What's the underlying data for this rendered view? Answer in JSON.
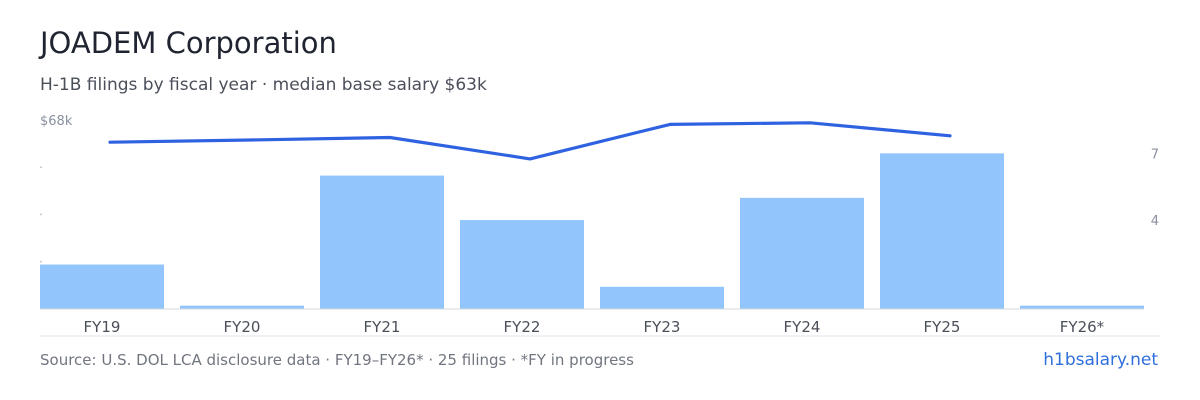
{
  "header": {
    "title": "JOADEM Corporation",
    "subtitle": "H-1B filings by fiscal year · median base salary $63k"
  },
  "chart_data": {
    "type": "bar",
    "categories": [
      "FY19",
      "FY20",
      "FY21",
      "FY22",
      "FY23",
      "FY24",
      "FY25",
      "FY26*"
    ],
    "series": [
      {
        "values": [
          2,
          0.15,
          6,
          4,
          1,
          5,
          7,
          0.15
        ],
        "color": "#93c5fd",
        "axis": "right"
      },
      {
        "values": [
          60,
          60.8,
          61.7,
          54,
          66.4,
          67,
          62.3,
          null
        ],
        "color": "#2f62e0",
        "type": "line",
        "axis": "left"
      }
    ],
    "y_left": {
      "top_label": "$68k",
      "ylim": [
        0,
        68
      ]
    },
    "y_right": {
      "tick_labels": [
        "7",
        "4"
      ],
      "ticks": [
        7,
        4
      ],
      "ylim": [
        0,
        8.5
      ]
    },
    "grid": false,
    "legend": "none"
  },
  "footer": {
    "source": "Source: U.S. DOL LCA disclosure data · FY19–FY26* · 25 filings · *FY in progress",
    "site": "h1bsalary.net"
  },
  "colors": {
    "bar": "#93c5fd",
    "line": "#2f62e0",
    "link": "#2f6fdc",
    "axis_text": "#8a90a0"
  }
}
